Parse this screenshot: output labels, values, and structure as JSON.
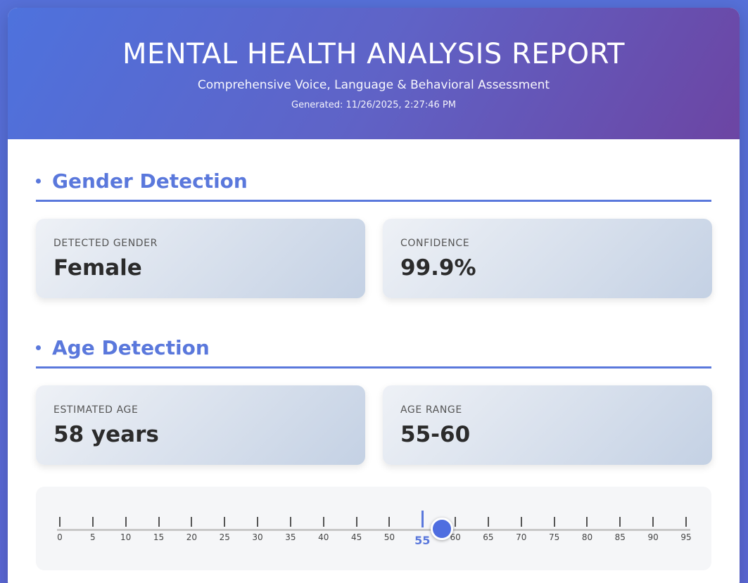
{
  "header": {
    "title": "MENTAL HEALTH ANALYSIS REPORT",
    "subtitle": "Comprehensive Voice, Language & Behavioral Assessment",
    "generated": "Generated: 11/26/2025, 2:27:46 PM"
  },
  "gender_section": {
    "title": "Gender Detection",
    "detected_label": "DETECTED GENDER",
    "detected_value": "Female",
    "confidence_label": "CONFIDENCE",
    "confidence_value": "99.9%"
  },
  "age_section": {
    "title": "Age Detection",
    "estimated_label": "ESTIMATED AGE",
    "estimated_value": "58 years",
    "range_label": "AGE RANGE",
    "range_value": "55-60"
  },
  "age_scale": {
    "min": 0,
    "max": 95,
    "ticks": [
      "0",
      "5",
      "10",
      "15",
      "20",
      "25",
      "30",
      "35",
      "40",
      "45",
      "50",
      "55",
      "60",
      "65",
      "70",
      "75",
      "80",
      "85",
      "90",
      "95"
    ],
    "marker_value": 55,
    "marker_label": "55",
    "handle_value": 58
  },
  "colors": {
    "accent": "#5a78dc",
    "handle": "#4f6ee0"
  }
}
